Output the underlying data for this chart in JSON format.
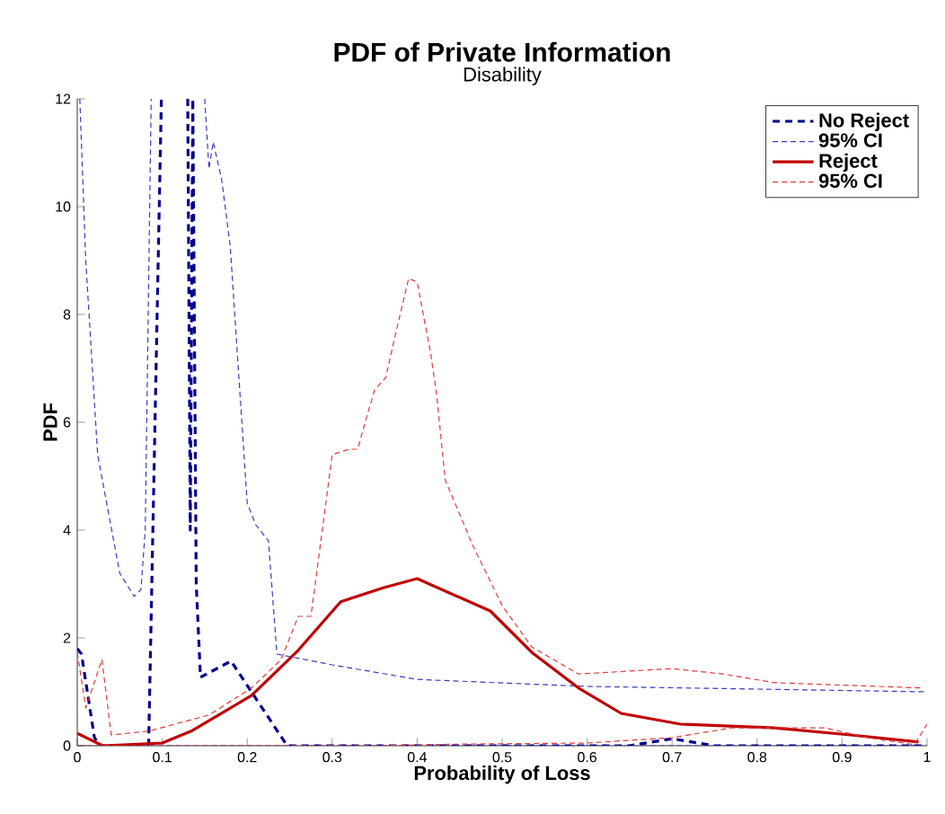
{
  "chart_data": {
    "type": "line",
    "title": "PDF of Private Information",
    "subtitle": "Disability",
    "xlabel": "Probability of Loss",
    "ylabel": "PDF",
    "xlim": [
      0,
      1
    ],
    "ylim": [
      0,
      12
    ],
    "xticks": [
      0,
      0.1,
      0.2,
      0.3,
      0.4,
      0.5,
      0.6,
      0.7,
      0.8,
      0.9,
      1
    ],
    "yticks": [
      0,
      2,
      4,
      6,
      8,
      10,
      12
    ],
    "grid": false,
    "legend": "top right",
    "marker": "none",
    "series": [
      {
        "name": "No Reject",
        "color": "#00008b",
        "line_style": "dashed",
        "x": [
          0,
          0.005,
          0.02,
          0.025,
          0.084,
          0.099,
          0.11,
          0.125,
          0.13,
          0.133,
          0.136,
          0.14,
          0.145,
          0.181,
          0.247,
          0.5,
          0.65,
          0.7,
          0.75,
          1
        ],
        "values": [
          1.8,
          1.7,
          0.17,
          0,
          0,
          12,
          null,
          null,
          12,
          4,
          12,
          3,
          1.27,
          1.57,
          0,
          0,
          0,
          0.13,
          0,
          0
        ]
      },
      {
        "name": "95% CI",
        "color": "#3a3ac0",
        "line_style": "dashed",
        "x": [
          0.003,
          0.01,
          0.024,
          0.05,
          0.067,
          0.075,
          0.08,
          0.087,
          0.12,
          0.15,
          0.155,
          0.16,
          0.17,
          0.18,
          0.2,
          0.21,
          0.225,
          0.235,
          0.3,
          0.4,
          0.6,
          0.8,
          1
        ],
        "values": [
          12,
          9,
          5.4,
          3.2,
          2.77,
          2.9,
          4,
          12,
          null,
          12,
          10.7,
          11.2,
          10.5,
          9.27,
          4.5,
          4.1,
          3.8,
          1.7,
          1.5,
          1.23,
          1.1,
          1.05,
          1.0
        ]
      },
      {
        "color": "#3a3ac0",
        "line_style": "dashed",
        "x": [
          0,
          0.5,
          1
        ],
        "values": [
          0,
          0,
          0
        ]
      },
      {
        "name": "Reject",
        "color": "#c00000",
        "line_style": "solid",
        "x": [
          0,
          0.03,
          0.1,
          0.134,
          0.205,
          0.26,
          0.31,
          0.36,
          0.4,
          0.486,
          0.535,
          0.59,
          0.64,
          0.71,
          0.82,
          0.91,
          0.99
        ],
        "values": [
          0.23,
          0,
          0.05,
          0.27,
          0.93,
          1.77,
          2.67,
          2.93,
          3.1,
          2.5,
          1.73,
          1.07,
          0.6,
          0.4,
          0.33,
          0.2,
          0.07
        ]
      },
      {
        "name": "95% CI",
        "color": "#e03a3a",
        "line_style": "dashed",
        "x": [
          0,
          0.01,
          0.029,
          0.04,
          0.084,
          0.155,
          0.205,
          0.24,
          0.26,
          0.275,
          0.3,
          0.32,
          0.33,
          0.34,
          0.35,
          0.363,
          0.374,
          0.39,
          0.4,
          0.416,
          0.423,
          0.433,
          0.465,
          0.5,
          0.535,
          0.59,
          0.7,
          0.76,
          0.82,
          0.995
        ],
        "values": [
          1.73,
          0.7,
          1.6,
          0.2,
          0.27,
          0.57,
          1.07,
          1.6,
          2.4,
          2.4,
          5.4,
          5.5,
          5.5,
          6.07,
          6.6,
          6.83,
          7.6,
          8.67,
          8.6,
          7.27,
          6.5,
          4.93,
          3.73,
          2.6,
          1.83,
          1.33,
          1.43,
          1.33,
          1.17,
          1.07
        ]
      },
      {
        "color": "#e03a3a",
        "line_style": "dashed",
        "x": [
          0,
          0.35,
          0.45,
          0.6,
          0.7,
          0.77,
          0.88,
          0.93,
          0.985,
          1
        ],
        "values": [
          0,
          0,
          0.03,
          0.05,
          0.15,
          0.33,
          0.33,
          0.15,
          0.02,
          0.4
        ]
      }
    ]
  }
}
